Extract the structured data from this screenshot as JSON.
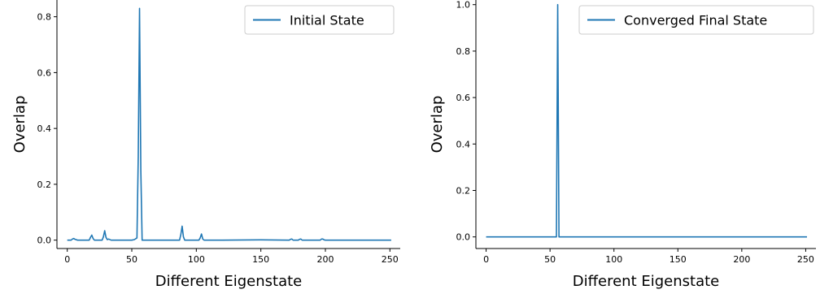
{
  "chart_data": [
    {
      "type": "line",
      "xlabel": "Different Eigenstate",
      "ylabel": "Overlap",
      "xlim": [
        -8,
        258
      ],
      "ylim": [
        -0.03,
        0.86
      ],
      "xticks": [
        0,
        50,
        100,
        150,
        200,
        250
      ],
      "yticks": [
        0.0,
        0.2,
        0.4,
        0.6,
        0.8
      ],
      "ytick_labels": [
        "0.0",
        "0.2",
        "0.4",
        "0.6",
        "0.8"
      ],
      "legend_position": "top-right",
      "grid": false,
      "series": [
        {
          "name": "Initial State",
          "color": "#1f77b4",
          "x": [
            0,
            3,
            4,
            5,
            6,
            8,
            10,
            17,
            18,
            19,
            20,
            21,
            27,
            28,
            29,
            30,
            31,
            32,
            34,
            50,
            52,
            54,
            55,
            56,
            57,
            58,
            60,
            87,
            88,
            89,
            90,
            91,
            102,
            103,
            104,
            105,
            106,
            120,
            150,
            172,
            173,
            174,
            175,
            179,
            180,
            181,
            182,
            196,
            197,
            198,
            199,
            200,
            215,
            251
          ],
          "y": [
            0.0,
            0.0,
            0.004,
            0.006,
            0.003,
            0.0,
            0.0,
            0.0,
            0.01,
            0.018,
            0.006,
            0.0,
            0.0,
            0.012,
            0.034,
            0.01,
            0.002,
            0.004,
            0.0,
            0.0,
            0.002,
            0.008,
            0.3,
            0.83,
            0.25,
            0.0,
            0.0,
            0.0,
            0.02,
            0.05,
            0.012,
            0.0,
            0.0,
            0.008,
            0.022,
            0.004,
            0.0,
            0.0,
            0.001,
            0.0,
            0.003,
            0.004,
            0.0,
            0.0,
            0.003,
            0.004,
            0.0,
            0.0,
            0.004,
            0.004,
            0.001,
            0.0,
            0.0,
            0.0
          ]
        }
      ]
    },
    {
      "type": "line",
      "xlabel": "Different Eigenstate",
      "ylabel": "Overlap",
      "xlim": [
        -8,
        258
      ],
      "ylim": [
        -0.05,
        1.02
      ],
      "xticks": [
        0,
        50,
        100,
        150,
        200,
        250
      ],
      "yticks": [
        0.0,
        0.2,
        0.4,
        0.6,
        0.8,
        1.0
      ],
      "ytick_labels": [
        "0.0",
        "0.2",
        "0.4",
        "0.6",
        "0.8",
        "1.0"
      ],
      "legend_position": "top-right",
      "grid": false,
      "series": [
        {
          "name": "Converged Final State",
          "color": "#1f77b4",
          "x": [
            0,
            54,
            55,
            56,
            57,
            58,
            251
          ],
          "y": [
            0.0,
            0.0,
            0.0,
            1.0,
            0.0,
            0.0,
            0.0
          ]
        }
      ]
    }
  ]
}
